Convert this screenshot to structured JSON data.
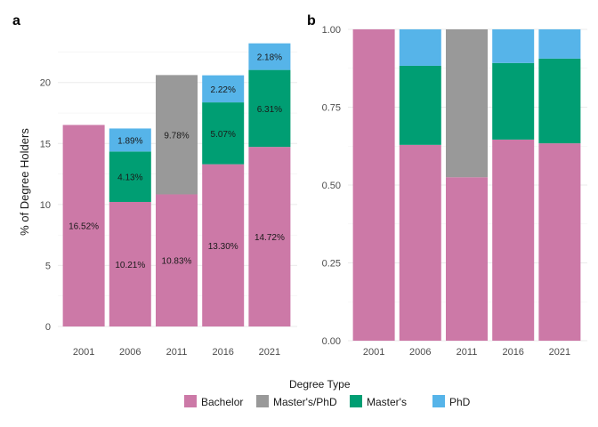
{
  "colors": {
    "Bachelor": "#cc79a7",
    "Master's/PhD": "#999999",
    "Master's": "#009e73",
    "PhD": "#56b4e9"
  },
  "legend": {
    "title": "Degree Type",
    "entries": [
      "Bachelor",
      "Master's/PhD",
      "Master's",
      "PhD"
    ]
  },
  "chart_data": [
    {
      "panel": "a",
      "type": "bar",
      "stacked": true,
      "categories": [
        "2001",
        "2006",
        "2011",
        "2016",
        "2021"
      ],
      "ylabel": "% of Degree Holders",
      "xlabel": "",
      "ylim": [
        0,
        23.7
      ],
      "yticks": [
        "0",
        "5",
        "10",
        "15",
        "20"
      ],
      "grid": true,
      "series": [
        {
          "name": "Bachelor",
          "values": [
            16.52,
            10.21,
            10.83,
            13.3,
            14.72
          ],
          "labels": [
            "16.52%",
            "10.21%",
            "10.83%",
            "13.30%",
            "14.72%"
          ]
        },
        {
          "name": "Master's/PhD",
          "values": [
            0,
            0,
            9.78,
            0,
            0
          ],
          "labels": [
            "",
            "",
            "9.78%",
            "",
            ""
          ]
        },
        {
          "name": "Master's",
          "values": [
            0,
            4.13,
            0,
            5.07,
            6.31
          ],
          "labels": [
            "",
            "4.13%",
            "",
            "5.07%",
            "6.31%"
          ]
        },
        {
          "name": "PhD",
          "values": [
            0,
            1.89,
            0,
            2.22,
            2.18
          ],
          "labels": [
            "",
            "1.89%",
            "",
            "2.22%",
            "2.18%"
          ]
        }
      ]
    },
    {
      "panel": "b",
      "type": "bar",
      "stacked": true,
      "normalized": true,
      "categories": [
        "2001",
        "2006",
        "2011",
        "2016",
        "2021"
      ],
      "ylabel": "",
      "xlabel": "",
      "ylim": [
        0,
        1
      ],
      "yticks": [
        "0.00",
        "0.25",
        "0.50",
        "0.75",
        "1.00"
      ],
      "grid": true,
      "series": [
        {
          "name": "Bachelor",
          "values": [
            1.0,
            0.629,
            0.525,
            0.646,
            0.634
          ]
        },
        {
          "name": "Master's/PhD",
          "values": [
            0,
            0,
            0.475,
            0,
            0
          ]
        },
        {
          "name": "Master's",
          "values": [
            0,
            0.254,
            0,
            0.246,
            0.272
          ]
        },
        {
          "name": "PhD",
          "values": [
            0,
            0.117,
            0,
            0.108,
            0.094
          ]
        }
      ]
    }
  ]
}
